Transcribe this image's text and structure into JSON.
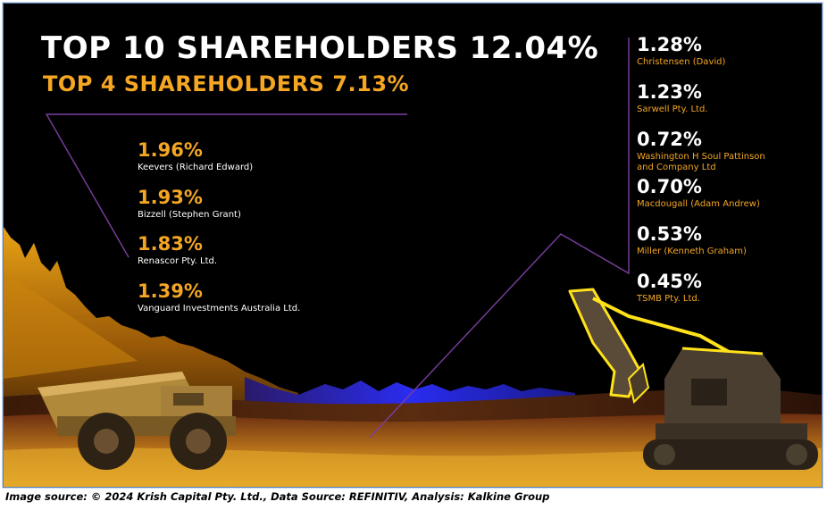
{
  "title": "TOP 10 SHAREHOLDERS 12.04%",
  "subtitle": "TOP 4 SHAREHOLDERS 7.13%",
  "top4": [
    {
      "percent": "1.96%",
      "name": "Keevers (Richard Edward)"
    },
    {
      "percent": "1.93%",
      "name": "Bizzell (Stephen Grant)"
    },
    {
      "percent": "1.83%",
      "name": "Renascor Pty. Ltd."
    },
    {
      "percent": "1.39%",
      "name": "Vanguard Investments Australia Ltd."
    }
  ],
  "others": [
    {
      "percent": "1.28%",
      "name": "Christensen (David)"
    },
    {
      "percent": "1.23%",
      "name": "Sarwell Pty. Ltd."
    },
    {
      "percent": "0.72%",
      "name_line1": "Washington H Soul Pattinson",
      "name_line2": "and Company Ltd"
    },
    {
      "percent": "0.70%",
      "name": "Macdougall (Adam Andrew)"
    },
    {
      "percent": "0.53%",
      "name": "Miller (Kenneth Graham)"
    },
    {
      "percent": "0.45%",
      "name": "TSMB Pty. Ltd."
    }
  ],
  "caption": "Image source: © 2024 Krish Capital Pty. Ltd., Data Source: REFINITIV, Analysis: Kalkine Group",
  "colors": {
    "accent": "#f5a623",
    "background": "#000000",
    "text": "#ffffff",
    "line": "#7b3fa0"
  },
  "icons": [
    "dump-truck-icon",
    "excavator-icon"
  ]
}
